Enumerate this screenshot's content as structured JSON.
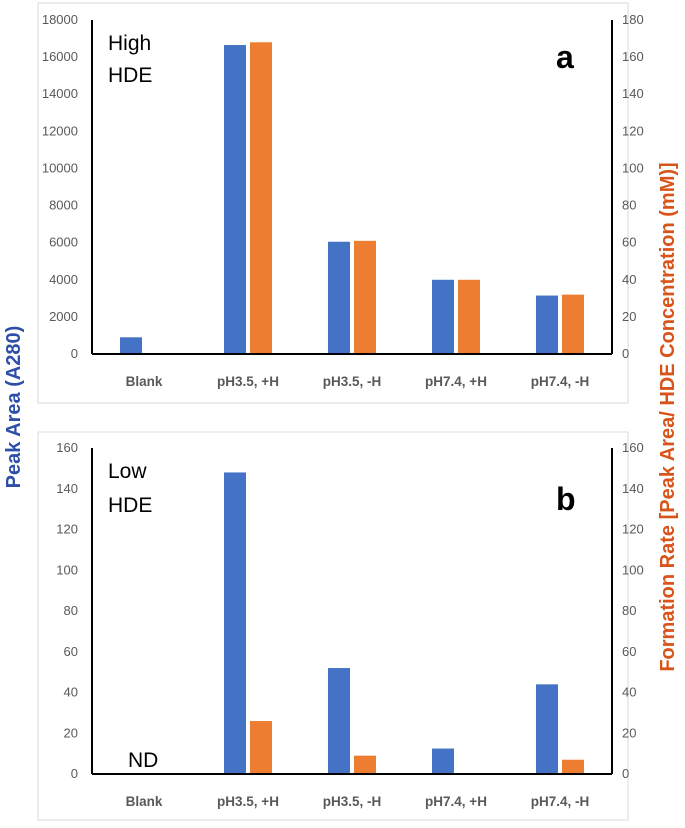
{
  "colors": {
    "peak_area": "#4472C4",
    "formation_rate": "#ED7D31",
    "left_label": "#2E4FA8",
    "right_label": "#D9541A",
    "axis": "#000000"
  },
  "y_label_left": "Peak Area (A280)",
  "y_label_right": "Formation Rate [Peak Area/ HDE Concentration (mM)]",
  "chart_data": [
    {
      "type": "bar",
      "panel": "a",
      "note_lines": [
        "High",
        "HDE"
      ],
      "categories": [
        "Blank",
        "pH3.5, +H",
        "pH3.5, -H",
        "pH7.4, +H",
        "pH7.4, -H"
      ],
      "series": [
        {
          "name": "Peak Area (A280)",
          "axis": "left",
          "values": [
            900,
            16650,
            6050,
            4000,
            3150
          ]
        },
        {
          "name": "Formation Rate",
          "axis": "right",
          "values": [
            null,
            168,
            61,
            40,
            32
          ]
        }
      ],
      "left_ticks": [
        "0",
        "2000",
        "4000",
        "6000",
        "8000",
        "10000",
        "12000",
        "14000",
        "16000",
        "18000"
      ],
      "right_ticks": [
        "0",
        "20",
        "40",
        "60",
        "80",
        "100",
        "120",
        "140",
        "160",
        "180"
      ],
      "left_ylim": [
        0,
        18000
      ],
      "right_ylim": [
        0,
        180
      ]
    },
    {
      "type": "bar",
      "panel": "b",
      "note_lines": [
        "Low",
        "HDE"
      ],
      "nd_label": "ND",
      "categories": [
        "Blank",
        "pH3.5, +H",
        "pH3.5, -H",
        "pH7.4, +H",
        "pH7.4, -H"
      ],
      "series": [
        {
          "name": "Peak Area (A280)",
          "axis": "left",
          "values": [
            null,
            148,
            52,
            12.5,
            44
          ]
        },
        {
          "name": "Formation Rate",
          "axis": "right",
          "values": [
            null,
            26,
            9,
            null,
            7
          ]
        }
      ],
      "left_ticks": [
        "0",
        "20",
        "40",
        "60",
        "80",
        "100",
        "120",
        "140",
        "160"
      ],
      "right_ticks": [
        "0",
        "20",
        "40",
        "60",
        "80",
        "100",
        "120",
        "140",
        "160"
      ],
      "left_ylim": [
        0,
        160
      ],
      "right_ylim": [
        0,
        160
      ]
    }
  ]
}
